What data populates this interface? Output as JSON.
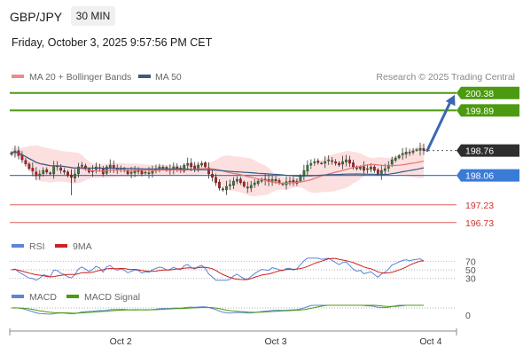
{
  "header": {
    "symbol": "GBP/JPY",
    "timeframe": "30 MIN",
    "datetime": "Friday, October 3, 2025 9:57:56 PM CET",
    "source": "Research © 2025 Trading Central"
  },
  "colors": {
    "candle_up": "#2e7d32",
    "candle_down": "#b71c1c",
    "ma20": "#e57373",
    "band_fill": "#fcd9d9",
    "ma50": "#3a5a80",
    "resistance": "#4c9a0f",
    "support": "#e06060",
    "pivot": "#3a7bd5",
    "arrow": "#3b67b0",
    "rsi": "#5c85d6",
    "rsi_ma": "#cc2222",
    "macd": "#5c85d6",
    "macd_signal": "#4c9a0f",
    "last_price": "#2e2e2e"
  },
  "chart_data": [
    {
      "type": "candlestick",
      "title": "",
      "legend": [
        {
          "name": "MA 20 + Bollinger Bands",
          "color": "#f08a8a"
        },
        {
          "name": "MA 50",
          "color": "#3a5a80"
        }
      ],
      "legend_position": "top-left",
      "ylim": [
        196.5,
        200.6
      ],
      "x_ticks": [
        {
          "label": "Oct 2",
          "index": 31
        },
        {
          "label": "Oct 3",
          "index": 75
        },
        {
          "label": "Oct 4",
          "index": 119
        }
      ],
      "levels": [
        {
          "label": "200.38",
          "value": 200.38,
          "kind": "resistance"
        },
        {
          "label": "199.89",
          "value": 199.89,
          "kind": "resistance"
        },
        {
          "label": "198.76",
          "value": 198.76,
          "kind": "last"
        },
        {
          "label": "198.06",
          "value": 198.06,
          "kind": "pivot"
        },
        {
          "label": "197.23",
          "value": 197.23,
          "kind": "support"
        },
        {
          "label": "196.73",
          "value": 196.73,
          "kind": "support"
        }
      ],
      "arrow": {
        "from_value": 198.76,
        "to_value": 200.38
      },
      "closes": [
        198.7,
        198.75,
        198.62,
        198.5,
        198.38,
        198.25,
        198.18,
        198.05,
        198.1,
        198.2,
        198.15,
        198.1,
        198.32,
        198.3,
        198.2,
        198.15,
        198.05,
        198.0,
        198.1,
        198.3,
        198.35,
        198.25,
        198.15,
        198.2,
        198.3,
        198.25,
        198.1,
        198.3,
        198.35,
        198.25,
        198.2,
        198.25,
        198.2,
        198.1,
        198.15,
        198.2,
        198.18,
        198.1,
        198.15,
        198.12,
        198.2,
        198.25,
        198.3,
        198.28,
        198.2,
        198.22,
        198.3,
        198.25,
        198.2,
        198.35,
        198.4,
        198.3,
        198.25,
        198.35,
        198.4,
        198.3,
        198.1,
        198.0,
        197.85,
        197.7,
        197.65,
        197.75,
        197.8,
        197.9,
        197.95,
        197.85,
        197.75,
        197.7,
        197.78,
        197.85,
        197.9,
        197.95,
        197.92,
        197.88,
        197.95,
        197.9,
        197.85,
        197.8,
        197.88,
        197.9,
        197.85,
        197.9,
        198.05,
        198.2,
        198.35,
        198.4,
        198.45,
        198.42,
        198.4,
        198.45,
        198.5,
        198.45,
        198.4,
        198.35,
        198.45,
        198.5,
        198.4,
        198.3,
        198.25,
        198.3,
        198.2,
        198.25,
        198.3,
        198.2,
        198.1,
        198.2,
        198.25,
        198.35,
        198.5,
        198.55,
        198.62,
        198.68,
        198.72,
        198.7,
        198.75,
        198.78,
        198.82,
        198.76
      ],
      "rsi": {
        "legend": [
          {
            "name": "RSI",
            "color": "#5c85d6"
          },
          {
            "name": "9MA",
            "color": "#cc2222"
          }
        ],
        "levels": [
          70,
          50,
          30
        ]
      },
      "macd": {
        "legend": [
          {
            "name": "MACD",
            "color": "#5c85d6"
          },
          {
            "name": "MACD Signal",
            "color": "#4c9a0f"
          }
        ],
        "zero_label": "0"
      }
    }
  ]
}
